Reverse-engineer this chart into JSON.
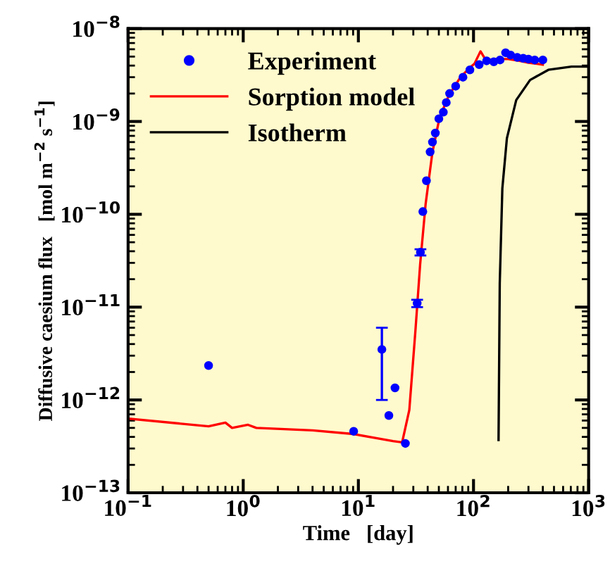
{
  "chart_data": {
    "type": "line",
    "xlabel": "Time   [day]",
    "ylabel": "Diffusive caesium flux   [mol m$^{−2}$ s$^{−1}$]",
    "log": "xy",
    "grid": false,
    "legend": "top left",
    "xlim": [
      0.1,
      1000
    ],
    "ylim": [
      1e-13,
      1e-08
    ],
    "xticks": [
      {
        "value": 0.1,
        "label": "10$^{−1}$"
      },
      {
        "value": 1,
        "label": "10$^{0}$"
      },
      {
        "value": 10,
        "label": "10$^{1}$"
      },
      {
        "value": 100,
        "label": "10$^{2}$"
      },
      {
        "value": 1000,
        "label": "10$^{3}$"
      }
    ],
    "yticks": [
      {
        "value": 1e-13,
        "label": "10$^{−13}$"
      },
      {
        "value": 1e-12,
        "label": "10$^{−12}$"
      },
      {
        "value": 1e-11,
        "label": "10$^{−11}$"
      },
      {
        "value": 1e-10,
        "label": "10$^{−10}$"
      },
      {
        "value": 1e-09,
        "label": "10$^{−9}$"
      },
      {
        "value": 1e-08,
        "label": "10$^{−8}$"
      }
    ],
    "series": [
      {
        "name": "Experiment",
        "type": "scatter",
        "color": "#0000ff",
        "marker": "circle",
        "x": [
          0.5,
          9.1,
          16,
          18.4,
          20.8,
          25.6,
          32.4,
          34.6,
          36.3,
          39,
          42,
          44,
          46.6,
          50,
          54.7,
          58,
          62,
          70,
          81,
          93,
          112,
          130,
          150,
          170,
          190,
          210,
          240,
          270,
          300,
          340,
          400
        ],
        "values": [
          2.35e-12,
          4.6e-13,
          3.5e-12,
          6.8e-13,
          1.35e-12,
          3.4e-13,
          1.1e-11,
          3.9e-11,
          1.07e-10,
          2.3e-10,
          4.7e-10,
          6e-10,
          7.5e-10,
          1.07e-09,
          1.26e-09,
          1.6e-09,
          2e-09,
          2.4e-09,
          3e-09,
          3.6e-09,
          4.1e-09,
          4.5e-09,
          4.4e-09,
          4.6e-09,
          5.5e-09,
          5.2e-09,
          4.9e-09,
          4.8e-09,
          4.7e-09,
          4.6e-09,
          4.6e-09
        ],
        "errors": [
          null,
          null,
          [
            1e-12,
            6e-12
          ],
          null,
          null,
          null,
          [
            1e-11,
            1.2e-11
          ],
          [
            3.6e-11,
            4.2e-11
          ],
          null,
          null,
          null,
          null,
          null,
          null,
          null,
          null,
          null,
          null,
          null,
          null,
          null,
          null,
          null,
          null,
          null,
          null,
          null,
          null,
          null,
          null,
          null
        ]
      },
      {
        "name": "Sorption model",
        "color": "#ff0000",
        "x": [
          0.1,
          0.5,
          0.7,
          0.8,
          1.1,
          1.3,
          4,
          9,
          14,
          20,
          24,
          27.7,
          31.3,
          34.4,
          38.4,
          44,
          50.7,
          61,
          77,
          93,
          102,
          115,
          129,
          150,
          200,
          250,
          300,
          400
        ],
        "values": [
          6.3e-13,
          5.2e-13,
          5.7e-13,
          5e-13,
          5.4e-13,
          5e-13,
          4.7e-13,
          4.3e-13,
          3.9e-13,
          3.6e-13,
          3.5e-13,
          7.8e-13,
          5.6e-12,
          2.9e-11,
          1.3e-10,
          4.7e-10,
          1.1e-09,
          1.9e-09,
          3e-09,
          3.8e-09,
          4.2e-09,
          5.7e-09,
          4.5e-09,
          4.7e-09,
          4.7e-09,
          4.5e-09,
          4.3e-09,
          4.1e-09
        ]
      },
      {
        "name": "Isotherm",
        "color": "#000000",
        "x": [
          165,
          169,
          178,
          195,
          235,
          310,
          447,
          710,
          1000
        ],
        "values": [
          3.7e-13,
          1.8e-11,
          1.9e-10,
          6.6e-10,
          1.7e-09,
          2.8e-09,
          3.6e-09,
          3.9e-09,
          3.9e-09
        ]
      }
    ]
  }
}
